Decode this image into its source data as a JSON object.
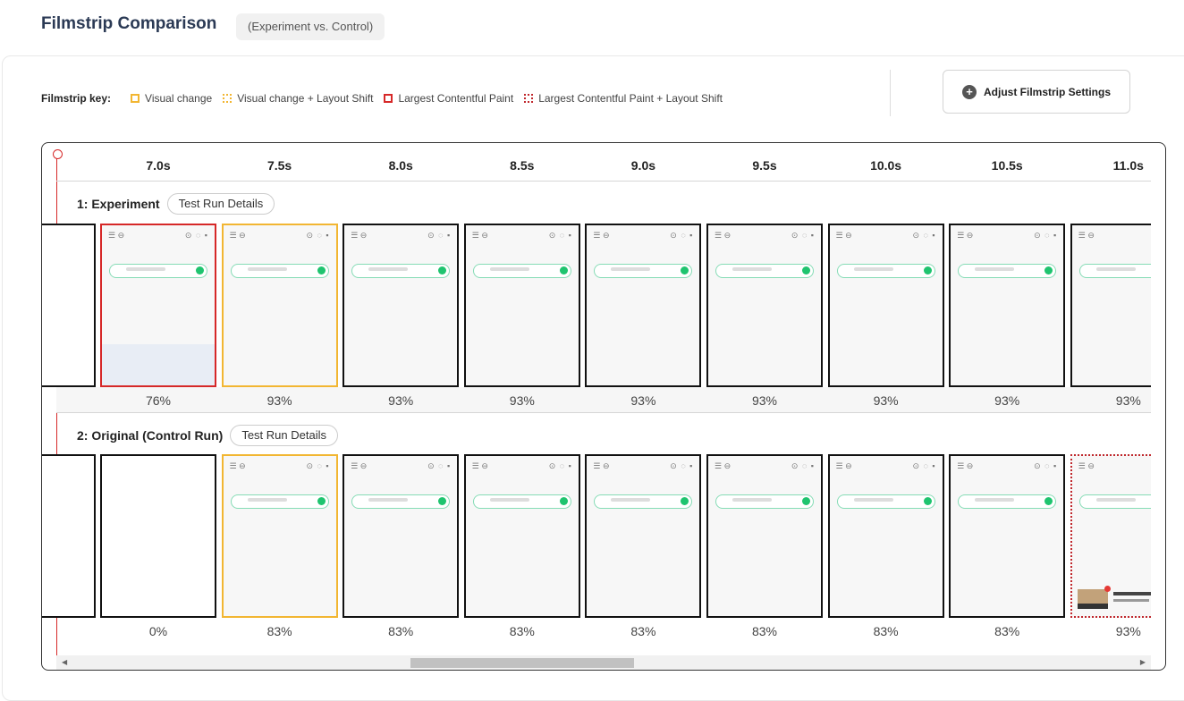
{
  "header": {
    "title": "Filmstrip Comparison",
    "subtitle": "(Experiment vs. Control)"
  },
  "key": {
    "label": "Filmstrip key:",
    "items": [
      {
        "label": "Visual change",
        "color": "#f2b632",
        "style": "solid"
      },
      {
        "label": "Visual change + Layout Shift",
        "color": "#f2b632",
        "style": "dotted"
      },
      {
        "label": "Largest Contentful Paint",
        "color": "#d62828",
        "style": "solid"
      },
      {
        "label": "Largest Contentful Paint + Layout Shift",
        "color": "#c0282d",
        "style": "dotted"
      }
    ]
  },
  "adjust_button": {
    "label": "Adjust Filmstrip Settings",
    "icon": "plus-circle-icon"
  },
  "timeline": {
    "ticks": [
      "7.0s",
      "7.5s",
      "8.0s",
      "8.5s",
      "9.0s",
      "9.5s",
      "10.0s",
      "10.5s",
      "11.0s"
    ]
  },
  "rows": [
    {
      "label": "1: Experiment",
      "details_label": "Test Run Details",
      "frames": [
        {
          "status": "lcp",
          "percent": "76%"
        },
        {
          "status": "vc",
          "percent": "93%"
        },
        {
          "status": "none",
          "percent": "93%"
        },
        {
          "status": "none",
          "percent": "93%"
        },
        {
          "status": "none",
          "percent": "93%"
        },
        {
          "status": "none",
          "percent": "93%"
        },
        {
          "status": "none",
          "percent": "93%"
        },
        {
          "status": "none",
          "percent": "93%"
        },
        {
          "status": "none",
          "percent": "93%"
        }
      ]
    },
    {
      "label": "2: Original (Control Run)",
      "details_label": "Test Run Details",
      "frames": [
        {
          "status": "none",
          "percent": "0%"
        },
        {
          "status": "vc",
          "percent": "83%"
        },
        {
          "status": "none",
          "percent": "83%"
        },
        {
          "status": "none",
          "percent": "83%"
        },
        {
          "status": "none",
          "percent": "83%"
        },
        {
          "status": "none",
          "percent": "83%"
        },
        {
          "status": "none",
          "percent": "83%"
        },
        {
          "status": "none",
          "percent": "83%"
        },
        {
          "status": "lcpls",
          "percent": "93%"
        }
      ]
    }
  ],
  "scrollbar": {
    "left_arrow": "◀",
    "right_arrow": "▶"
  }
}
